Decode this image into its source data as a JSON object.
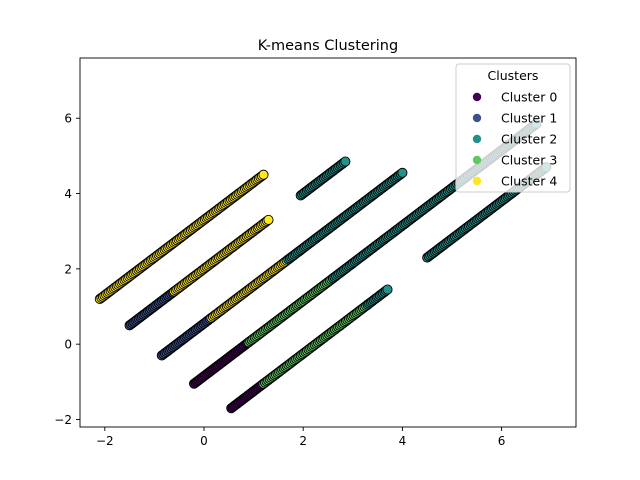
{
  "chart_data": {
    "type": "scatter",
    "title": "K-means Clustering",
    "xlabel": "",
    "ylabel": "",
    "xlim": [
      -2.5,
      7.5
    ],
    "ylim": [
      -2.2,
      7.6
    ],
    "xticks": [
      -2,
      0,
      2,
      4,
      6
    ],
    "yticks": [
      -2,
      0,
      2,
      4,
      6
    ],
    "grid": false,
    "legend": {
      "title": "Clusters",
      "position": "top-right",
      "entries": [
        "Cluster 0",
        "Cluster 1",
        "Cluster 2",
        "Cluster 3",
        "Cluster 4"
      ]
    },
    "colors": [
      "#440154",
      "#3b528b",
      "#21918c",
      "#5ec962",
      "#fde725"
    ],
    "point_density_per_unit_x": 32,
    "series_segments": [
      {
        "cluster": 4,
        "x_start": -2.1,
        "x_end": 1.2,
        "slope": 1.0,
        "intercept": 3.3
      },
      {
        "cluster": 1,
        "x_start": -1.5,
        "x_end": -0.6,
        "slope": 1.0,
        "intercept": 2.0
      },
      {
        "cluster": 4,
        "x_start": -0.6,
        "x_end": 1.3,
        "slope": 1.0,
        "intercept": 2.0
      },
      {
        "cluster": 1,
        "x_start": -0.85,
        "x_end": 0.15,
        "slope": 1.0,
        "intercept": 0.55
      },
      {
        "cluster": 4,
        "x_start": 0.15,
        "x_end": 1.7,
        "slope": 1.0,
        "intercept": 0.55
      },
      {
        "cluster": 2,
        "x_start": 1.7,
        "x_end": 4.0,
        "slope": 1.0,
        "intercept": 0.55
      },
      {
        "cluster": 0,
        "x_start": -0.2,
        "x_end": 0.9,
        "slope": 1.0,
        "intercept": -0.85
      },
      {
        "cluster": 3,
        "x_start": 0.9,
        "x_end": 2.6,
        "slope": 1.0,
        "intercept": -0.85
      },
      {
        "cluster": 2,
        "x_start": 2.6,
        "x_end": 6.7,
        "slope": 1.0,
        "intercept": -0.85
      },
      {
        "cluster": 0,
        "x_start": 0.55,
        "x_end": 1.2,
        "slope": 1.0,
        "intercept": -2.25
      },
      {
        "cluster": 3,
        "x_start": 1.2,
        "x_end": 3.3,
        "slope": 1.0,
        "intercept": -2.25
      },
      {
        "cluster": 2,
        "x_start": 3.3,
        "x_end": 3.7,
        "slope": 1.0,
        "intercept": -2.25
      },
      {
        "cluster": 2,
        "x_start": 1.95,
        "x_end": 2.85,
        "slope": 1.0,
        "intercept": 2.0
      },
      {
        "cluster": 2,
        "x_start": 4.5,
        "x_end": 6.9,
        "slope": 1.0,
        "intercept": -2.2
      }
    ]
  }
}
